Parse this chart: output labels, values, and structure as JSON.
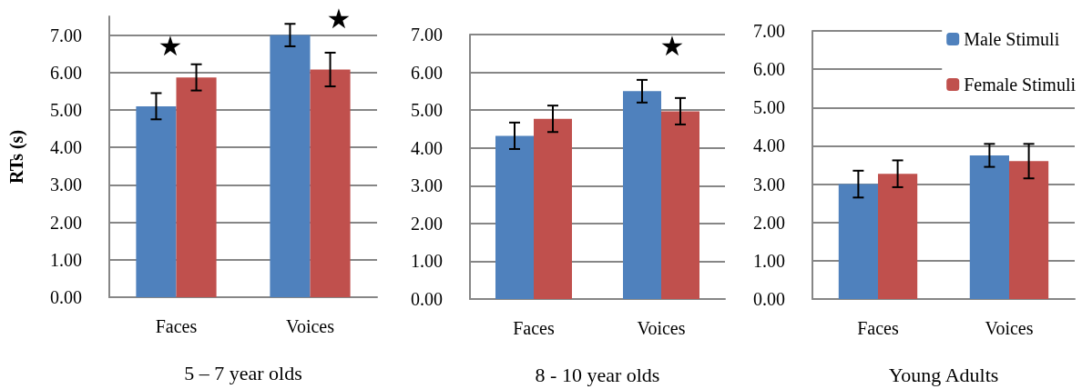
{
  "chart_data": [
    {
      "type": "bar",
      "xlabel": "5 – 7 year olds",
      "ylabel": "RTs (s)",
      "categories": [
        "Faces",
        "Voices"
      ],
      "series": [
        {
          "color": "#4f81bd",
          "values": [
            5.1,
            7.0
          ],
          "errors": [
            0.35,
            0.3
          ]
        },
        {
          "color": "#c0504d",
          "values": [
            5.87,
            6.08
          ],
          "errors": [
            0.35,
            0.45
          ]
        }
      ],
      "ylim": [
        0,
        7.5
      ],
      "yticks": [
        {
          "value": 0,
          "label": "0.00"
        },
        {
          "value": 1,
          "label": "1.00"
        },
        {
          "value": 2,
          "label": "2.00"
        },
        {
          "value": 3,
          "label": "3.00"
        },
        {
          "value": 4,
          "label": "4.00"
        },
        {
          "value": 5,
          "label": "5.00"
        },
        {
          "value": 6,
          "label": "6.00"
        },
        {
          "value": 7,
          "label": "7.00"
        }
      ],
      "annotations": [
        "★",
        "★"
      ],
      "grid": "y",
      "legend": false
    },
    {
      "type": "bar",
      "xlabel": "8 - 10 year olds",
      "categories": [
        "Faces",
        "Voices"
      ],
      "series": [
        {
          "color": "#4f81bd",
          "values": [
            4.32,
            5.5
          ],
          "errors": [
            0.35,
            0.3
          ]
        },
        {
          "color": "#c0504d",
          "values": [
            4.77,
            4.97
          ],
          "errors": [
            0.35,
            0.35
          ]
        }
      ],
      "ylim": [
        0,
        7
      ],
      "yticks": [
        {
          "value": 0,
          "label": "0.00"
        },
        {
          "value": 1,
          "label": "1.00"
        },
        {
          "value": 2,
          "label": "2.00"
        },
        {
          "value": 3,
          "label": "3.00"
        },
        {
          "value": 4,
          "label": "4.00"
        },
        {
          "value": 5,
          "label": "5.00"
        },
        {
          "value": 6,
          "label": "6.00"
        },
        {
          "value": 7,
          "label": "7.00"
        }
      ],
      "annotations": [
        "★"
      ],
      "grid": "y",
      "legend": false
    },
    {
      "type": "bar",
      "xlabel": "Young Adults",
      "categories": [
        "Faces",
        "Voices"
      ],
      "series": [
        {
          "name": "Male Stimuli",
          "color": "#4f81bd",
          "values": [
            3.0,
            3.75
          ],
          "errors": [
            0.35,
            0.3
          ]
        },
        {
          "name": "Female Stimuli",
          "color": "#c0504d",
          "values": [
            3.27,
            3.6
          ],
          "errors": [
            0.35,
            0.45
          ]
        }
      ],
      "ylim": [
        0,
        7
      ],
      "yticks": [
        {
          "value": 0,
          "label": "0.00"
        },
        {
          "value": 1,
          "label": "1.00"
        },
        {
          "value": 2,
          "label": "2.00"
        },
        {
          "value": 3,
          "label": "3.00"
        },
        {
          "value": 4,
          "label": "4.00"
        },
        {
          "value": 5,
          "label": "5.00"
        },
        {
          "value": 6,
          "label": "6.00"
        },
        {
          "value": 7,
          "label": "7.00"
        }
      ],
      "grid": "y",
      "legend": "top right"
    }
  ]
}
